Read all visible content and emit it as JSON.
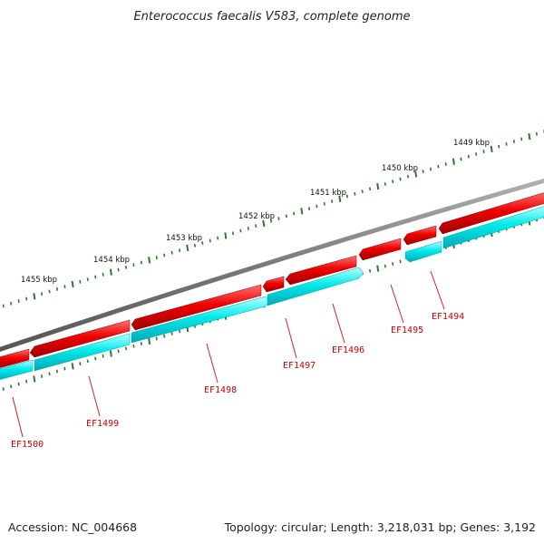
{
  "title": "Enterococcus faecalis V583, complete genome",
  "accession": "Accession: NC_004668",
  "summary": "Topology: circular; Length: 3,218,031 bp; Genes: 3,192",
  "colors": {
    "backbone": "#7f7f7f",
    "forward_strand": "#e00000",
    "reverse_strand": "#00e5e5",
    "ticks": "#2a7a2a",
    "labels": "#cc0000"
  },
  "scale_labels": [
    "1455 kbp",
    "1454 kbp",
    "1453 kbp",
    "1452 kbp",
    "1451 kbp",
    "1450 kbp",
    "1449 kbp"
  ],
  "genes": [
    {
      "label": "EF1500"
    },
    {
      "label": "EF1499"
    },
    {
      "label": "EF1498"
    },
    {
      "label": "EF1497"
    },
    {
      "label": "EF1496"
    },
    {
      "label": "EF1495"
    },
    {
      "label": "EF1494"
    }
  ]
}
